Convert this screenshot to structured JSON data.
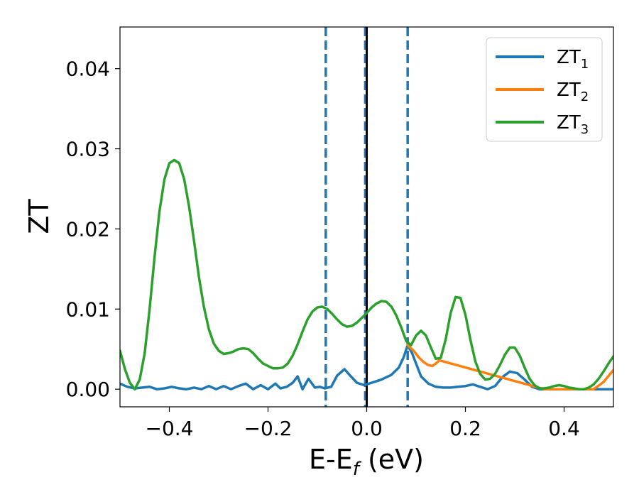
{
  "chart_data": {
    "type": "line",
    "title": "",
    "xlabel": {
      "base": "E-E",
      "sub": "f",
      "suffix": " (eV)"
    },
    "ylabel": "ZT",
    "xlim": [
      -0.5,
      0.5
    ],
    "ylim": [
      -0.0022,
      0.0452
    ],
    "xticks": [
      {
        "value": -0.4,
        "label": "−0.4"
      },
      {
        "value": -0.2,
        "label": "−0.2"
      },
      {
        "value": 0.0,
        "label": "0.0"
      },
      {
        "value": 0.2,
        "label": "0.2"
      },
      {
        "value": 0.4,
        "label": "0.4"
      }
    ],
    "yticks": [
      {
        "value": 0.0,
        "label": "0.00"
      },
      {
        "value": 0.01,
        "label": "0.01"
      },
      {
        "value": 0.02,
        "label": "0.02"
      },
      {
        "value": 0.03,
        "label": "0.03"
      },
      {
        "value": 0.04,
        "label": "0.04"
      }
    ],
    "grid": false,
    "legend": {
      "placement": "top-right",
      "entries": [
        {
          "base": "ZT",
          "sub": "1",
          "color": "#1f77b4"
        },
        {
          "base": "ZT",
          "sub": "2",
          "color": "#ff7f0e"
        },
        {
          "base": "ZT",
          "sub": "3",
          "color": "#2ca02c"
        }
      ]
    },
    "reference_lines": [
      {
        "x": -0.083,
        "style": "dashed",
        "color": "#1f77b4"
      },
      {
        "x": -0.003,
        "style": "dashed",
        "color": "#1f77b4"
      },
      {
        "x": 0.0,
        "style": "solid",
        "color": "#000000"
      },
      {
        "x": 0.083,
        "style": "dashed",
        "color": "#1f77b4"
      }
    ],
    "series": [
      {
        "color": "#1f77b4",
        "points": [
          [
            -0.5,
            0.0007
          ],
          [
            -0.485,
            0.0003
          ],
          [
            -0.47,
            0.0001
          ],
          [
            -0.455,
            0.0002
          ],
          [
            -0.44,
            0.0003
          ],
          [
            -0.425,
            0.0
          ],
          [
            -0.41,
            0.0001
          ],
          [
            -0.395,
            0.0003
          ],
          [
            -0.38,
            0.0001
          ],
          [
            -0.365,
            0.0
          ],
          [
            -0.35,
            0.0002
          ],
          [
            -0.335,
            0.0
          ],
          [
            -0.32,
            0.0004
          ],
          [
            -0.305,
            0.0
          ],
          [
            -0.29,
            0.0004
          ],
          [
            -0.275,
            0.0
          ],
          [
            -0.26,
            0.0004
          ],
          [
            -0.245,
            0.0007
          ],
          [
            -0.23,
            0.0
          ],
          [
            -0.215,
            0.0005
          ],
          [
            -0.2,
            0.0
          ],
          [
            -0.185,
            0.0007
          ],
          [
            -0.175,
            0.0001
          ],
          [
            -0.162,
            0.0003
          ],
          [
            -0.15,
            0.0008
          ],
          [
            -0.14,
            0.0016
          ],
          [
            -0.13,
            0.0
          ],
          [
            -0.118,
            0.0013
          ],
          [
            -0.105,
            0.0002
          ],
          [
            -0.095,
            0.0003
          ],
          [
            -0.085,
            0.0001
          ],
          [
            -0.072,
            0.0003
          ],
          [
            -0.06,
            0.0017
          ],
          [
            -0.045,
            0.0025
          ],
          [
            -0.035,
            0.0018
          ],
          [
            -0.02,
            0.0008
          ],
          [
            -0.005,
            0.0005
          ],
          [
            0.01,
            0.0008
          ],
          [
            0.03,
            0.0012
          ],
          [
            0.05,
            0.0018
          ],
          [
            0.065,
            0.0027
          ],
          [
            0.075,
            0.004
          ],
          [
            0.083,
            0.0055
          ],
          [
            0.092,
            0.0045
          ],
          [
            0.1,
            0.0032
          ],
          [
            0.11,
            0.0016
          ],
          [
            0.125,
            0.0007
          ],
          [
            0.14,
            0.0003
          ],
          [
            0.155,
            0.0002
          ],
          [
            0.17,
            0.0002
          ],
          [
            0.185,
            0.0003
          ],
          [
            0.2,
            0.0004
          ],
          [
            0.215,
            0.0006
          ],
          [
            0.23,
            0.0003
          ],
          [
            0.245,
            0.0
          ],
          [
            0.26,
            0.0004
          ],
          [
            0.275,
            0.0015
          ],
          [
            0.29,
            0.0022
          ],
          [
            0.305,
            0.002
          ],
          [
            0.32,
            0.0012
          ],
          [
            0.335,
            0.0003
          ],
          [
            0.35,
            0.0
          ],
          [
            0.365,
            0.0
          ],
          [
            0.5,
            0.0
          ]
        ]
      },
      {
        "color": "#ff7f0e",
        "points": [
          [
            0.083,
            0.0055
          ],
          [
            0.095,
            0.0048
          ],
          [
            0.105,
            0.004
          ],
          [
            0.115,
            0.0034
          ],
          [
            0.125,
            0.003
          ],
          [
            0.133,
            0.0029
          ],
          [
            0.14,
            0.0032
          ],
          [
            0.147,
            0.0036
          ],
          [
            0.36,
            0.0
          ],
          [
            0.4,
            0.0
          ],
          [
            0.44,
            0.0
          ],
          [
            0.46,
            0.0
          ],
          [
            0.48,
            0.0009
          ],
          [
            0.5,
            0.0024
          ]
        ]
      },
      {
        "color": "#2ca02c",
        "points": [
          [
            -0.5,
            0.0048
          ],
          [
            -0.49,
            0.0025
          ],
          [
            -0.48,
            0.0008
          ],
          [
            -0.47,
            0.0
          ],
          [
            -0.46,
            0.0012
          ],
          [
            -0.45,
            0.0045
          ],
          [
            -0.44,
            0.01
          ],
          [
            -0.43,
            0.0165
          ],
          [
            -0.42,
            0.0222
          ],
          [
            -0.41,
            0.0262
          ],
          [
            -0.4,
            0.0282
          ],
          [
            -0.39,
            0.0286
          ],
          [
            -0.38,
            0.0282
          ],
          [
            -0.37,
            0.0262
          ],
          [
            -0.36,
            0.0228
          ],
          [
            -0.35,
            0.0185
          ],
          [
            -0.34,
            0.014
          ],
          [
            -0.33,
            0.0103
          ],
          [
            -0.32,
            0.0075
          ],
          [
            -0.31,
            0.0057
          ],
          [
            -0.3,
            0.0048
          ],
          [
            -0.29,
            0.0044
          ],
          [
            -0.28,
            0.0045
          ],
          [
            -0.27,
            0.0047
          ],
          [
            -0.26,
            0.005
          ],
          [
            -0.25,
            0.0051
          ],
          [
            -0.24,
            0.005
          ],
          [
            -0.23,
            0.0045
          ],
          [
            -0.22,
            0.0038
          ],
          [
            -0.21,
            0.0032
          ],
          [
            -0.2,
            0.0029
          ],
          [
            -0.19,
            0.0026
          ],
          [
            -0.18,
            0.0026
          ],
          [
            -0.17,
            0.0027
          ],
          [
            -0.16,
            0.0032
          ],
          [
            -0.15,
            0.0042
          ],
          [
            -0.14,
            0.0056
          ],
          [
            -0.13,
            0.0072
          ],
          [
            -0.12,
            0.0087
          ],
          [
            -0.11,
            0.0097
          ],
          [
            -0.1,
            0.0102
          ],
          [
            -0.09,
            0.0103
          ],
          [
            -0.08,
            0.01
          ],
          [
            -0.07,
            0.0094
          ],
          [
            -0.06,
            0.0087
          ],
          [
            -0.05,
            0.0081
          ],
          [
            -0.04,
            0.0078
          ],
          [
            -0.03,
            0.0079
          ],
          [
            -0.02,
            0.0083
          ],
          [
            -0.01,
            0.0089
          ],
          [
            0.0,
            0.0095
          ],
          [
            0.01,
            0.0102
          ],
          [
            0.02,
            0.0107
          ],
          [
            0.03,
            0.011
          ],
          [
            0.04,
            0.0109
          ],
          [
            0.05,
            0.0103
          ],
          [
            0.06,
            0.0092
          ],
          [
            0.07,
            0.0077
          ],
          [
            0.08,
            0.006
          ],
          [
            0.09,
            0.0055
          ],
          [
            0.1,
            0.0067
          ],
          [
            0.11,
            0.0073
          ],
          [
            0.12,
            0.0067
          ],
          [
            0.13,
            0.0052
          ],
          [
            0.14,
            0.0038
          ],
          [
            0.15,
            0.0039
          ],
          [
            0.16,
            0.0062
          ],
          [
            0.17,
            0.0095
          ],
          [
            0.18,
            0.0115
          ],
          [
            0.19,
            0.0114
          ],
          [
            0.2,
            0.0093
          ],
          [
            0.21,
            0.0062
          ],
          [
            0.22,
            0.0035
          ],
          [
            0.23,
            0.0019
          ],
          [
            0.24,
            0.0012
          ],
          [
            0.25,
            0.0013
          ],
          [
            0.26,
            0.0019
          ],
          [
            0.27,
            0.003
          ],
          [
            0.28,
            0.0043
          ],
          [
            0.29,
            0.0052
          ],
          [
            0.3,
            0.0052
          ],
          [
            0.31,
            0.0042
          ],
          [
            0.32,
            0.0027
          ],
          [
            0.33,
            0.0013
          ],
          [
            0.34,
            0.0005
          ],
          [
            0.35,
            0.0001
          ],
          [
            0.36,
            0.0001
          ],
          [
            0.37,
            0.0002
          ],
          [
            0.38,
            0.0004
          ],
          [
            0.39,
            0.0005
          ],
          [
            0.4,
            0.0004
          ],
          [
            0.41,
            0.0002
          ],
          [
            0.42,
            0.0001
          ],
          [
            0.43,
            0.0
          ],
          [
            0.44,
            0.0
          ],
          [
            0.45,
            0.0002
          ],
          [
            0.46,
            0.0006
          ],
          [
            0.47,
            0.0013
          ],
          [
            0.48,
            0.0022
          ],
          [
            0.49,
            0.0032
          ],
          [
            0.5,
            0.0041
          ]
        ]
      }
    ]
  }
}
